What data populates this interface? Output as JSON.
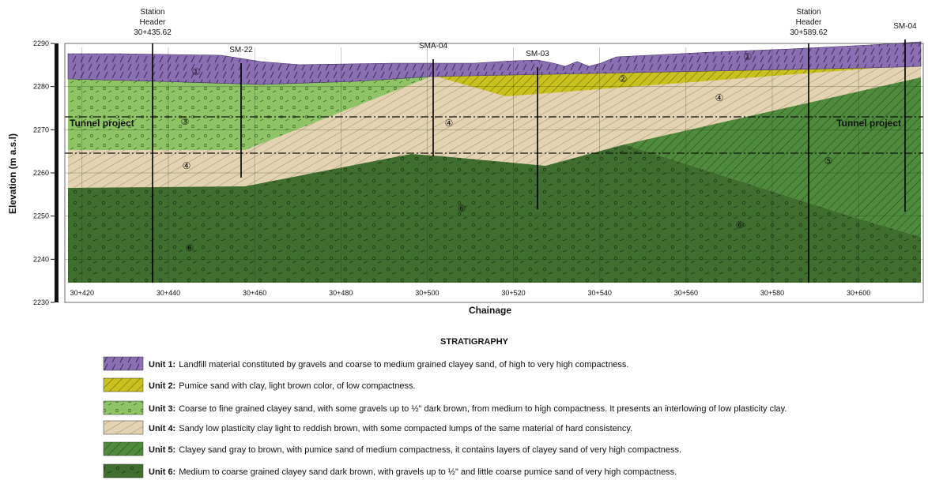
{
  "section": {
    "y_axis_title": "Elevation (m a.s.l)",
    "x_axis_title": "Chainage",
    "ylim": [
      2230,
      2290
    ],
    "yticks": [
      2230,
      2240,
      2250,
      2260,
      2270,
      2280,
      2290
    ],
    "xlim": [
      416,
      615
    ],
    "xticks": [
      {
        "value": 420,
        "label": "30+420"
      },
      {
        "value": 440,
        "label": "30+440"
      },
      {
        "value": 460,
        "label": "30+460"
      },
      {
        "value": 480,
        "label": "30+480"
      },
      {
        "value": 500,
        "label": "30+500"
      },
      {
        "value": 520,
        "label": "30+520"
      },
      {
        "value": 540,
        "label": "30+540"
      },
      {
        "value": 560,
        "label": "30+560"
      },
      {
        "value": 580,
        "label": "30+580"
      },
      {
        "value": 600,
        "label": "30+600"
      }
    ],
    "boreholes": [
      "Station\nHeader\n30+435.62",
      "SM-22",
      "SMA-04",
      "SM-03",
      "Station\nHeader\n30+589.62",
      "SM-04"
    ],
    "tunnel_labels": [
      "Tunnel project",
      "Tunnel project"
    ],
    "unit_markers": [
      "①",
      "①",
      "②",
      "③",
      "④",
      "④",
      "④",
      "⑤",
      "⑥",
      "⑥",
      "⑥"
    ]
  },
  "legend": {
    "title": "STRATIGRAPHY",
    "items": [
      {
        "label": "Unit 1:",
        "text": "Landfill material constituted by gravels and coarse to medium grained clayey sand, of high to very high compactness."
      },
      {
        "label": "Unit 2:",
        "text": "Pumice sand with clay, light brown color, of low compactness."
      },
      {
        "label": "Unit 3:",
        "text": "Coarse to fine grained clayey sand, with some gravels up to ½\" dark brown, from medium to high compactness. It presents an interlowing of low plasticity clay."
      },
      {
        "label": "Unit 4:",
        "text": "Sandy low plasticity clay light to reddish brown, with some compacted lumps of the same material of hard consistency."
      },
      {
        "label": "Unit 5:",
        "text": "Clayey sand gray to brown, with pumice sand of medium compactness, it contains layers of clayey sand of very high compactness."
      },
      {
        "label": "Unit 6:",
        "text": "Medium to coarse grained clayey sand dark brown, with gravels up to ½\" and little coarse pumice sand of very high compactness."
      }
    ]
  }
}
